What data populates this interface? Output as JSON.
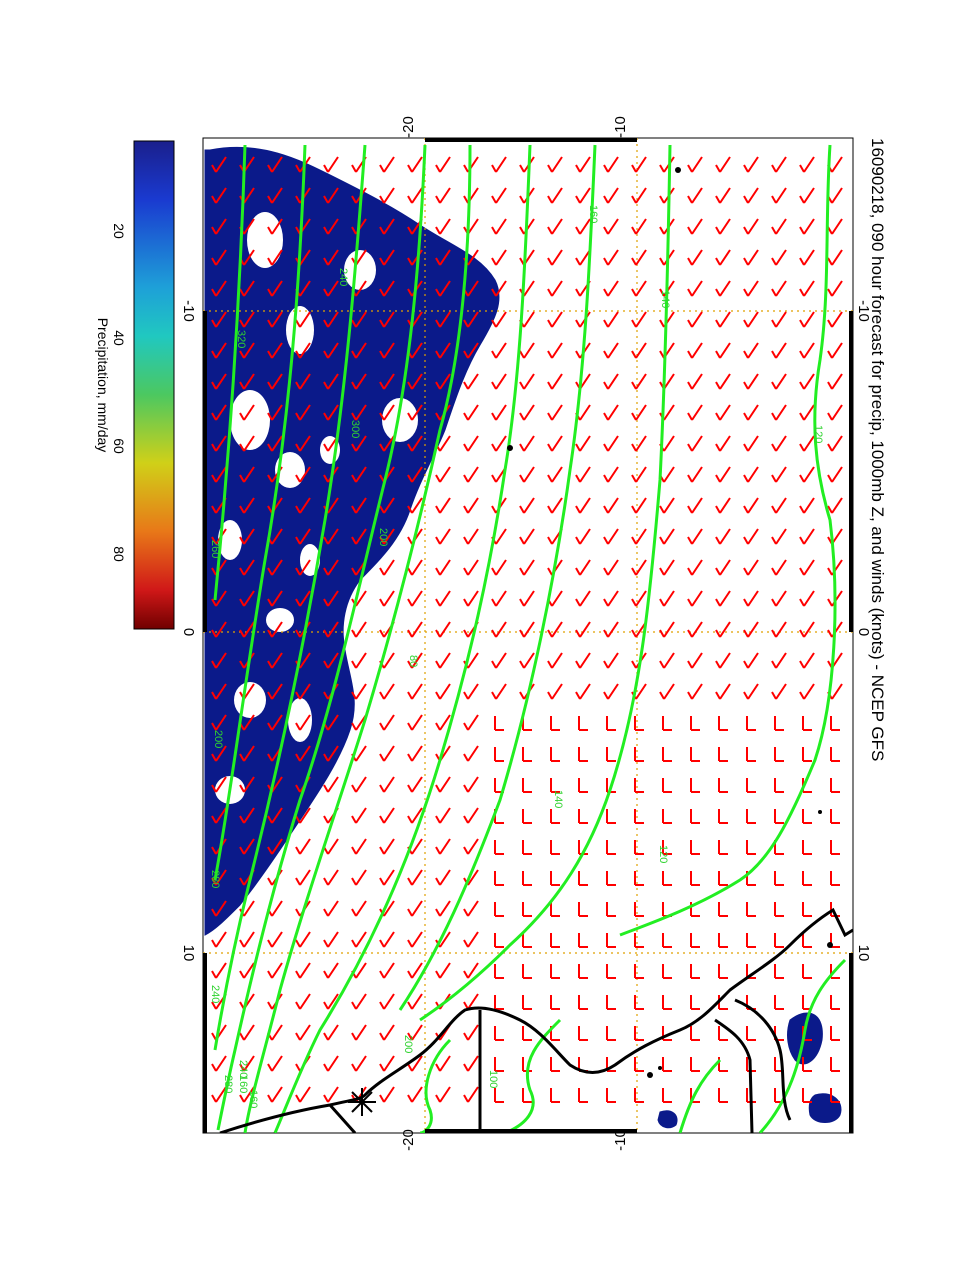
{
  "map": {
    "title": "16090218, 090 hour forecast for precip, 1000mb Z, and winds (knots) - NCEP GFS",
    "x_ticks_top": [
      "-20",
      "-10"
    ],
    "x_ticks_bottom": [
      "-20",
      "-10"
    ],
    "y_ticks_left": [
      "-10",
      "0",
      "10"
    ],
    "y_ticks_right": [
      "-10",
      "0",
      "10"
    ],
    "contour_labels": [
      "240",
      "200",
      "160",
      "140",
      "120",
      "80",
      "260",
      "320",
      "300",
      "140",
      "120",
      "160",
      "240",
      "280",
      "200",
      "240",
      "280",
      "160",
      "100",
      "200"
    ],
    "colors": {
      "precip_fill": "#0b1a8a",
      "contours": "#22ee22",
      "wind_barbs": "#ff0000",
      "coastline": "#000000",
      "gridlines": "#e0a000"
    }
  },
  "colorbar": {
    "label": "Precipitation, mm/day",
    "ticks": [
      "20",
      "40",
      "60",
      "80"
    ]
  }
}
